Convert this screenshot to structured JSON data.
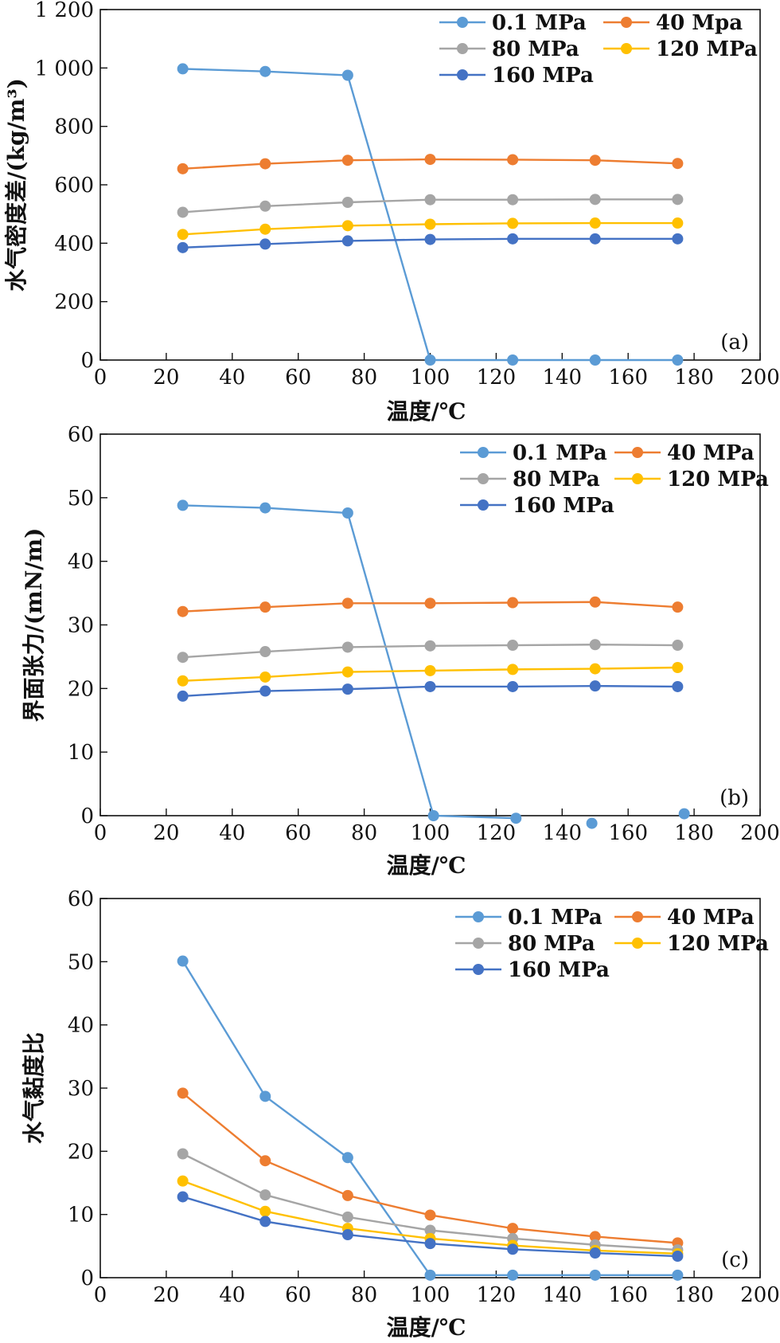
{
  "chart_data": [
    {
      "type": "line",
      "panel_tag": "(a)",
      "xlabel": "温度/℃",
      "ylabel": "水气密度差/(kg/m³)",
      "xlim": [
        0,
        200
      ],
      "ylim": [
        0,
        1200
      ],
      "xticks": [
        0,
        20,
        40,
        60,
        80,
        100,
        120,
        140,
        160,
        180,
        200
      ],
      "yticks": [
        0,
        200,
        400,
        600,
        800,
        1000,
        1200
      ],
      "ytick_labels": [
        "0",
        "200",
        "400",
        "600",
        "800",
        "1 000",
        "1 200"
      ],
      "legend_position": "top-right",
      "grid": false,
      "series": [
        {
          "name": "0.1 MPa",
          "color": "#5b9bd5",
          "x": [
            25,
            50,
            75,
            100,
            125,
            150,
            175
          ],
          "y": [
            997,
            988,
            975,
            0,
            0,
            0,
            0
          ]
        },
        {
          "name": "40 Mpa",
          "color": "#ed7d31",
          "x": [
            25,
            50,
            75,
            100,
            125,
            150,
            175
          ],
          "y": [
            655,
            672,
            684,
            687,
            686,
            684,
            673
          ]
        },
        {
          "name": "80 MPa",
          "color": "#a5a5a5",
          "x": [
            25,
            50,
            75,
            100,
            125,
            150,
            175
          ],
          "y": [
            506,
            527,
            540,
            549,
            549,
            550,
            550
          ]
        },
        {
          "name": "120 MPa",
          "color": "#ffc000",
          "x": [
            25,
            50,
            75,
            100,
            125,
            150,
            175
          ],
          "y": [
            430,
            448,
            460,
            465,
            468,
            469,
            469
          ]
        },
        {
          "name": "160 MPa",
          "color": "#4472c4",
          "x": [
            25,
            50,
            75,
            100,
            125,
            150,
            175
          ],
          "y": [
            385,
            397,
            408,
            413,
            415,
            415,
            415
          ]
        }
      ]
    },
    {
      "type": "line",
      "panel_tag": "(b)",
      "xlabel": "温度/℃",
      "ylabel": "界面张力/(mN/m)",
      "xlim": [
        0,
        200
      ],
      "ylim": [
        0,
        60
      ],
      "xticks": [
        0,
        20,
        40,
        60,
        80,
        100,
        120,
        140,
        160,
        180,
        200
      ],
      "yticks": [
        0,
        10,
        20,
        30,
        40,
        50,
        60
      ],
      "ytick_labels": [
        "0",
        "10",
        "20",
        "30",
        "40",
        "50",
        "60"
      ],
      "legend_position": "top-right",
      "grid": false,
      "series": [
        {
          "name": "0.1 MPa",
          "color": "#5b9bd5",
          "x": [
            25,
            50,
            75,
            101,
            126,
            149,
            177
          ],
          "y": [
            48.8,
            48.4,
            47.6,
            0,
            -0.4,
            -1.2,
            0.3
          ],
          "connect_points": 5
        },
        {
          "name": "40 MPa",
          "color": "#ed7d31",
          "x": [
            25,
            50,
            75,
            100,
            125,
            150,
            175
          ],
          "y": [
            32.1,
            32.8,
            33.4,
            33.4,
            33.5,
            33.6,
            32.8
          ]
        },
        {
          "name": "80 MPa",
          "color": "#a5a5a5",
          "x": [
            25,
            50,
            75,
            100,
            125,
            150,
            175
          ],
          "y": [
            24.9,
            25.8,
            26.5,
            26.7,
            26.8,
            26.9,
            26.8
          ]
        },
        {
          "name": "120 MPa",
          "color": "#ffc000",
          "x": [
            25,
            50,
            75,
            100,
            125,
            150,
            175
          ],
          "y": [
            21.2,
            21.8,
            22.6,
            22.8,
            23.0,
            23.1,
            23.3
          ]
        },
        {
          "name": "160 MPa",
          "color": "#4472c4",
          "x": [
            25,
            50,
            75,
            100,
            125,
            150,
            175
          ],
          "y": [
            18.8,
            19.6,
            19.9,
            20.3,
            20.3,
            20.4,
            20.3
          ]
        }
      ]
    },
    {
      "type": "line",
      "panel_tag": "(c)",
      "xlabel": "温度/℃",
      "ylabel": "水气黏度比",
      "xlim": [
        0,
        200
      ],
      "ylim": [
        0,
        60
      ],
      "xticks": [
        0,
        20,
        40,
        60,
        80,
        100,
        120,
        140,
        160,
        180,
        200
      ],
      "yticks": [
        0,
        10,
        20,
        30,
        40,
        50,
        60
      ],
      "ytick_labels": [
        "0",
        "10",
        "20",
        "30",
        "40",
        "50",
        "60"
      ],
      "legend_position": "top-right",
      "grid": false,
      "series": [
        {
          "name": "0.1 MPa",
          "color": "#5b9bd5",
          "x": [
            25,
            50,
            75,
            100,
            125,
            150,
            175
          ],
          "y": [
            50.1,
            28.7,
            19.0,
            0.4,
            0.4,
            0.4,
            0.4
          ]
        },
        {
          "name": "40 MPa",
          "color": "#ed7d31",
          "x": [
            25,
            50,
            75,
            100,
            125,
            150,
            175
          ],
          "y": [
            29.2,
            18.5,
            13.0,
            9.9,
            7.8,
            6.5,
            5.5
          ]
        },
        {
          "name": "80 MPa",
          "color": "#a5a5a5",
          "x": [
            25,
            50,
            75,
            100,
            125,
            150,
            175
          ],
          "y": [
            19.6,
            13.1,
            9.6,
            7.5,
            6.2,
            5.2,
            4.4
          ]
        },
        {
          "name": "120 MPa",
          "color": "#ffc000",
          "x": [
            25,
            50,
            75,
            100,
            125,
            150,
            175
          ],
          "y": [
            15.3,
            10.5,
            7.8,
            6.2,
            5.1,
            4.3,
            3.8
          ]
        },
        {
          "name": "160 MPa",
          "color": "#4472c4",
          "x": [
            25,
            50,
            75,
            100,
            125,
            150,
            175
          ],
          "y": [
            12.8,
            8.9,
            6.8,
            5.4,
            4.5,
            3.9,
            3.4
          ]
        }
      ]
    }
  ]
}
